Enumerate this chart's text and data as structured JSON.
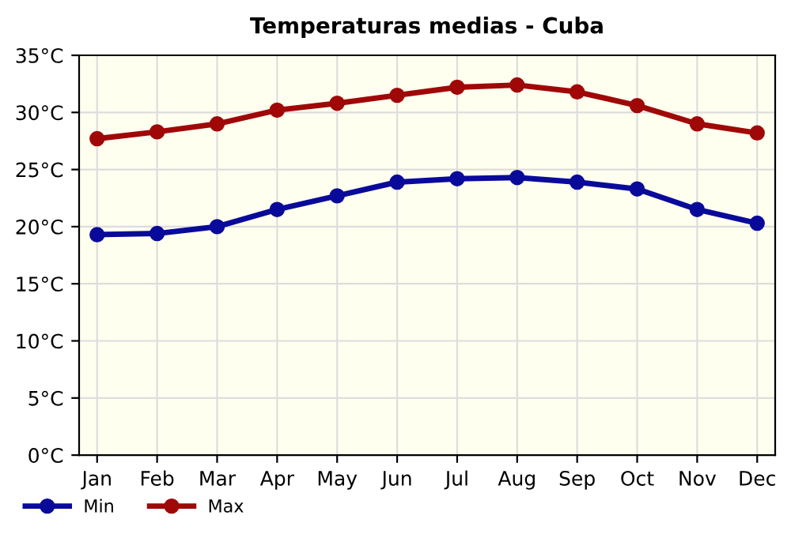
{
  "chart_data": {
    "type": "line",
    "title": "Temperaturas medias - Cuba",
    "categories": [
      "Jan",
      "Feb",
      "Mar",
      "Apr",
      "May",
      "Jun",
      "Jul",
      "Aug",
      "Sep",
      "Oct",
      "Nov",
      "Dec"
    ],
    "series": [
      {
        "name": "Min",
        "color": "#0a0a9a",
        "values": [
          19.3,
          19.4,
          20.0,
          21.5,
          22.7,
          23.9,
          24.2,
          24.3,
          23.9,
          23.3,
          21.5,
          20.3
        ]
      },
      {
        "name": "Max",
        "color": "#a00808",
        "values": [
          27.7,
          28.3,
          29.0,
          30.2,
          30.8,
          31.5,
          32.2,
          32.4,
          31.8,
          30.6,
          29.0,
          28.2
        ]
      }
    ],
    "ylim": [
      0,
      35
    ],
    "yticks": [
      {
        "value": 0,
        "label": "0°C"
      },
      {
        "value": 5,
        "label": "5°C"
      },
      {
        "value": 10,
        "label": "10°C"
      },
      {
        "value": 15,
        "label": "15°C"
      },
      {
        "value": 20,
        "label": "20°C"
      },
      {
        "value": 25,
        "label": "25°C"
      },
      {
        "value": 30,
        "label": "30°C"
      },
      {
        "value": 35,
        "label": "35°C"
      }
    ],
    "grid": true,
    "legend": "bottom left",
    "marker": "circle",
    "line_style": "solid"
  }
}
